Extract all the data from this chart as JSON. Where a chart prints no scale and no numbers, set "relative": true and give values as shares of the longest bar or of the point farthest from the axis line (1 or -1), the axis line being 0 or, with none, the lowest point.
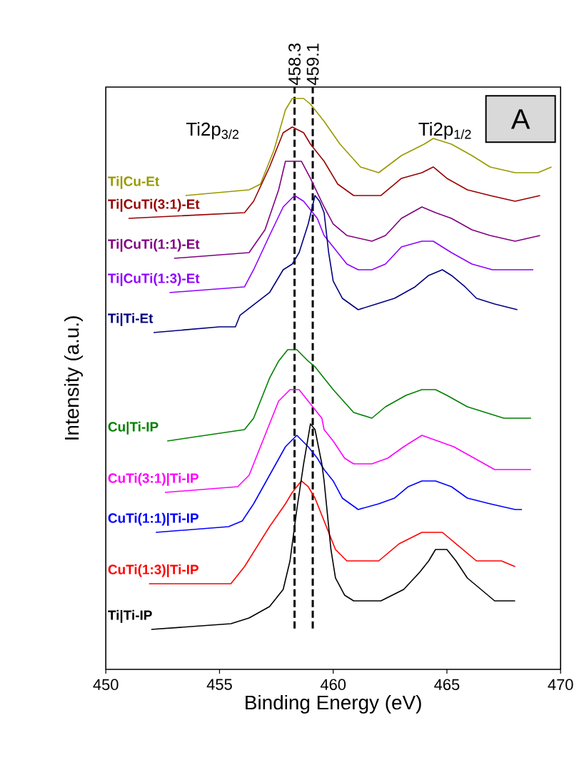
{
  "chart_data": {
    "type": "line",
    "relative": true,
    "xlabel": "Binding Energy (eV)",
    "ylabel": "Intensity (a.u.)",
    "xlim": [
      450,
      470
    ],
    "xticks": [
      450,
      455,
      460,
      465,
      470
    ],
    "annotations": [
      "Ti2p$_{3/2}$",
      "Ti2p$_{1/2}$",
      "A"
    ],
    "ref_lines": [
      {
        "axis": "x",
        "value": 458.3,
        "label": "458.3",
        "color": "#000000",
        "line_style": "dashed"
      },
      {
        "axis": "x",
        "value": 459.1,
        "label": "459.1",
        "color": "#000000",
        "line_style": "dashed"
      }
    ],
    "series": [
      {
        "name": "Ti|Cu-Et",
        "color": "#999900",
        "x": [
          453.5,
          456.3,
          456.8,
          457.4,
          457.9,
          458.2,
          458.4,
          458.7,
          459.0,
          459.6,
          460.3,
          461.2,
          462.0,
          463.0,
          464.0,
          464.4,
          465.2,
          466.1,
          466.9,
          468.0,
          469.0,
          469.6
        ],
        "values": [
          0.83,
          0.84,
          0.85,
          0.91,
          0.98,
          1.0,
          1.0,
          1.0,
          0.99,
          0.96,
          0.92,
          0.88,
          0.87,
          0.9,
          0.92,
          0.93,
          0.92,
          0.9,
          0.88,
          0.87,
          0.87,
          0.88
        ]
      },
      {
        "name": "Ti|CuTi(3:1)-Et",
        "color": "#990000",
        "x": [
          451.0,
          456.1,
          456.5,
          457.2,
          457.8,
          458.2,
          458.7,
          459.0,
          459.6,
          460.2,
          460.9,
          461.5,
          462.1,
          463.0,
          463.9,
          464.4,
          465.0,
          465.9,
          466.9,
          468.0,
          469.1
        ],
        "values": [
          0.79,
          0.8,
          0.82,
          0.88,
          0.94,
          0.95,
          0.94,
          0.92,
          0.89,
          0.85,
          0.83,
          0.83,
          0.83,
          0.86,
          0.87,
          0.88,
          0.86,
          0.84,
          0.83,
          0.82,
          0.83
        ]
      },
      {
        "name": "Ti|CuTi(1:1)-Et",
        "color": "#800080",
        "x": [
          453.0,
          456.3,
          457.0,
          457.6,
          457.9,
          458.2,
          458.6,
          459.0,
          459.6,
          460.0,
          460.6,
          461.7,
          462.3,
          463.0,
          463.9,
          464.5,
          465.2,
          466.1,
          466.9,
          468.0,
          469.1
        ],
        "values": [
          0.72,
          0.73,
          0.77,
          0.84,
          0.89,
          0.89,
          0.89,
          0.86,
          0.81,
          0.78,
          0.76,
          0.75,
          0.76,
          0.79,
          0.81,
          0.8,
          0.79,
          0.77,
          0.76,
          0.75,
          0.76
        ]
      },
      {
        "name": "Ti|CuTi(1:3)-Et",
        "color": "#8f00ff",
        "x": [
          452.8,
          456.1,
          456.5,
          457.2,
          457.8,
          458.3,
          458.7,
          459.3,
          459.6,
          460.0,
          460.6,
          461.1,
          461.7,
          462.3,
          463.0,
          463.9,
          464.4,
          465.2,
          466.1,
          467.0,
          468.0,
          468.8
        ],
        "values": [
          0.66,
          0.67,
          0.7,
          0.76,
          0.81,
          0.83,
          0.82,
          0.79,
          0.76,
          0.74,
          0.71,
          0.7,
          0.7,
          0.71,
          0.74,
          0.75,
          0.75,
          0.73,
          0.71,
          0.7,
          0.7,
          0.7
        ]
      },
      {
        "name": "Ti|Ti-Et",
        "color": "#000080",
        "x": [
          452.1,
          455.0,
          455.7,
          455.9,
          457.2,
          457.8,
          458.2,
          458.5,
          458.9,
          459.2,
          459.4,
          459.6,
          459.8,
          460.0,
          460.4,
          461.1,
          461.9,
          462.7,
          463.6,
          464.2,
          464.8,
          465.2,
          465.8,
          466.3,
          467.1,
          468.1
        ],
        "values": [
          0.59,
          0.6,
          0.6,
          0.62,
          0.66,
          0.7,
          0.71,
          0.73,
          0.78,
          0.83,
          0.82,
          0.8,
          0.73,
          0.68,
          0.65,
          0.63,
          0.64,
          0.65,
          0.67,
          0.69,
          0.7,
          0.69,
          0.67,
          0.65,
          0.64,
          0.63
        ]
      },
      {
        "name": "Cu|Ti-IP",
        "color": "#008000",
        "x": [
          452.7,
          456.1,
          456.5,
          457.2,
          457.6,
          458.0,
          458.4,
          458.9,
          459.2,
          459.6,
          460.0,
          460.9,
          461.7,
          462.3,
          463.2,
          463.9,
          464.5,
          465.0,
          465.9,
          466.7,
          467.5,
          468.7
        ],
        "values": [
          0.4,
          0.42,
          0.44,
          0.51,
          0.54,
          0.56,
          0.56,
          0.54,
          0.53,
          0.51,
          0.49,
          0.45,
          0.44,
          0.46,
          0.48,
          0.49,
          0.49,
          0.48,
          0.46,
          0.45,
          0.44,
          0.44
        ]
      },
      {
        "name": "CuTi(3:1)|Ti-IP",
        "color": "#ff00ff",
        "x": [
          452.6,
          455.8,
          456.3,
          457.0,
          457.6,
          458.1,
          458.5,
          458.9,
          459.5,
          459.6,
          460.0,
          460.5,
          460.9,
          461.7,
          462.4,
          463.1,
          463.9,
          464.6,
          465.3,
          466.2,
          467.1,
          468.1,
          468.7
        ],
        "values": [
          0.31,
          0.32,
          0.34,
          0.41,
          0.47,
          0.49,
          0.49,
          0.47,
          0.44,
          0.42,
          0.4,
          0.37,
          0.36,
          0.36,
          0.37,
          0.39,
          0.41,
          0.4,
          0.39,
          0.37,
          0.35,
          0.35,
          0.35
        ]
      },
      {
        "name": "CuTi(1:1)|Ti-IP",
        "color": "#0000ff",
        "x": [
          452.2,
          455.4,
          456.0,
          456.5,
          457.2,
          457.9,
          458.4,
          458.9,
          459.3,
          459.6,
          460.0,
          460.4,
          461.1,
          462.0,
          462.7,
          463.3,
          463.9,
          464.5,
          465.2,
          465.9,
          466.9,
          468.0,
          468.3
        ],
        "values": [
          0.24,
          0.25,
          0.26,
          0.29,
          0.34,
          0.39,
          0.41,
          0.39,
          0.37,
          0.35,
          0.33,
          0.3,
          0.28,
          0.29,
          0.3,
          0.32,
          0.33,
          0.33,
          0.32,
          0.3,
          0.29,
          0.28,
          0.28
        ]
      },
      {
        "name": "CuTi(1:3)|Ti-IP",
        "color": "#ff0000",
        "x": [
          451.9,
          455.5,
          456.1,
          457.2,
          457.9,
          458.2,
          458.6,
          458.9,
          459.2,
          459.6,
          459.8,
          460.1,
          460.6,
          461.4,
          462.0,
          462.9,
          463.9,
          464.4,
          464.8,
          465.4,
          466.3,
          467.4,
          468.0
        ],
        "values": [
          0.15,
          0.15,
          0.18,
          0.25,
          0.29,
          0.31,
          0.33,
          0.32,
          0.3,
          0.26,
          0.24,
          0.21,
          0.19,
          0.19,
          0.19,
          0.22,
          0.24,
          0.24,
          0.24,
          0.22,
          0.19,
          0.19,
          0.18
        ]
      },
      {
        "name": "Ti|Ti-IP",
        "color": "#000000",
        "x": [
          452.0,
          455.5,
          456.3,
          457.2,
          457.8,
          458.1,
          458.4,
          458.7,
          459.0,
          459.2,
          459.5,
          459.6,
          459.9,
          460.1,
          460.5,
          460.9,
          461.7,
          462.1,
          462.6,
          463.1,
          463.8,
          464.2,
          464.5,
          465.0,
          465.4,
          465.9,
          466.5,
          467.1,
          468.0
        ],
        "values": [
          0.07,
          0.08,
          0.09,
          0.11,
          0.14,
          0.19,
          0.28,
          0.36,
          0.43,
          0.42,
          0.36,
          0.33,
          0.21,
          0.16,
          0.13,
          0.12,
          0.12,
          0.12,
          0.13,
          0.14,
          0.17,
          0.19,
          0.21,
          0.21,
          0.19,
          0.16,
          0.14,
          0.12,
          0.12
        ]
      }
    ]
  }
}
